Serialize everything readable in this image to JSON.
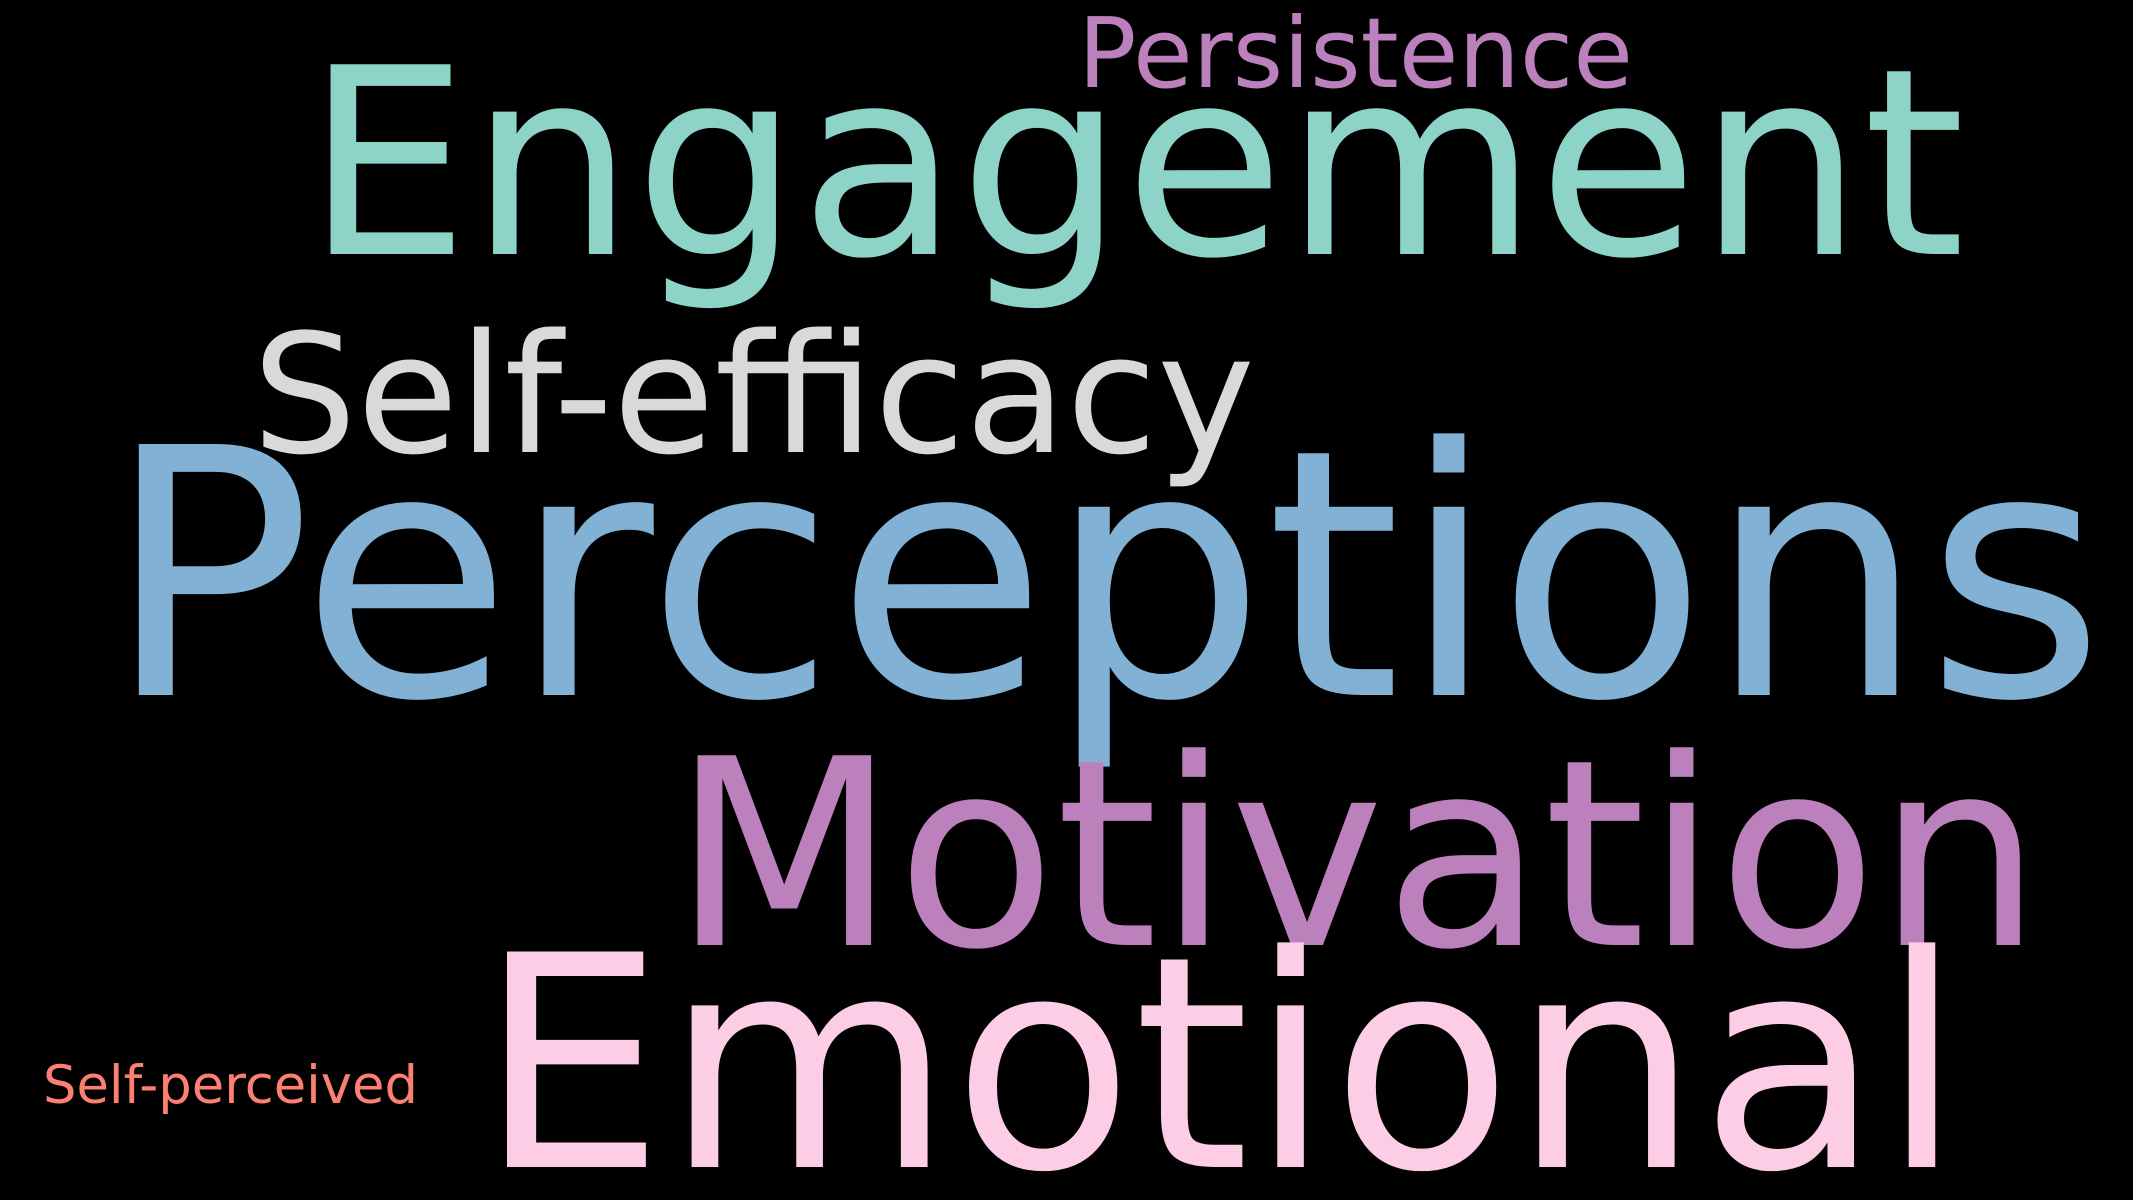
{
  "background": "#000000",
  "words": [
    {
      "text": "Perceptions",
      "color": "#81B1D4"
    },
    {
      "text": "Engagement",
      "color": "#8DD3C7"
    },
    {
      "text": "Motivation",
      "color": "#BC80BD"
    },
    {
      "text": "Emotional",
      "color": "#FCCDE5"
    },
    {
      "text": "Self-efficacy",
      "color": "#D9D9D9"
    },
    {
      "text": "Persistence",
      "color": "#BC80BD"
    },
    {
      "text": "Self-perceived",
      "color": "#FB8072"
    }
  ]
}
